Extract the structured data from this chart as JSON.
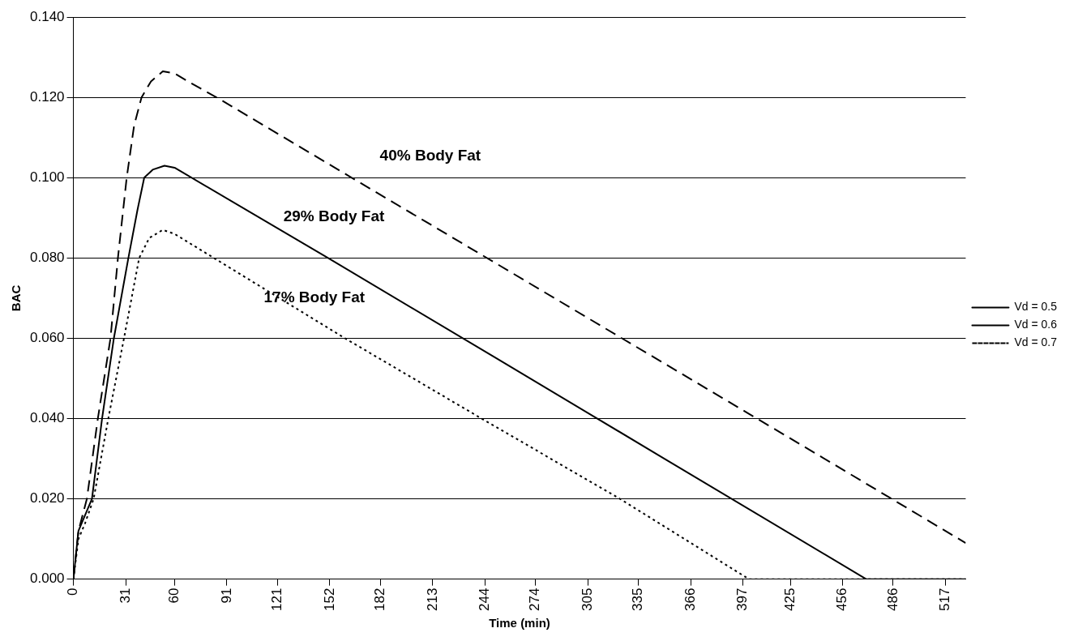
{
  "chart_data": {
    "type": "line",
    "xlabel": "Time (min)",
    "ylabel": "BAC",
    "xlim": [
      0,
      529
    ],
    "xticks": [
      0,
      31,
      60,
      91,
      121,
      152,
      182,
      213,
      244,
      274,
      305,
      335,
      366,
      397,
      425,
      456,
      486,
      517
    ],
    "ylim": [
      0,
      0.14
    ],
    "yticks": [
      {
        "value": 0,
        "label": "0.000"
      },
      {
        "value": 0.02,
        "label": "0.020"
      },
      {
        "value": 0.04,
        "label": "0.040"
      },
      {
        "value": 0.06,
        "label": "0.060"
      },
      {
        "value": 0.08,
        "label": "0.080"
      },
      {
        "value": 0.1,
        "label": "0.100"
      },
      {
        "value": 0.12,
        "label": "0.120"
      },
      {
        "value": 0.14,
        "label": "0.140"
      }
    ],
    "grid": "y",
    "legend": "right",
    "marker": "none",
    "series": [
      {
        "name": "Vd = 0.5",
        "color": "#000000",
        "line_style": "dashed",
        "x": [
          0,
          3,
          8,
          14.5,
          22,
          26.4,
          31.6,
          36,
          40.4,
          46,
          53,
          60,
          70,
          85,
          165,
          250,
          350,
          450,
          529
        ],
        "values": [
          0,
          0.012,
          0.02,
          0.04,
          0.06,
          0.08,
          0.1,
          0.113,
          0.12,
          0.124,
          0.1265,
          0.126,
          0.1235,
          0.12,
          0.1,
          0.0788,
          0.0538,
          0.0288,
          0.009
        ]
      },
      {
        "name": "Vd = 0.6",
        "color": "#000000",
        "line_style": "solid",
        "x": [
          0,
          3,
          7,
          11,
          17,
          24,
          32.6,
          38,
          42,
          47,
          54,
          60,
          151,
          250,
          350,
          470,
          529
        ],
        "values": [
          0,
          0.012,
          0.016,
          0.02,
          0.04,
          0.06,
          0.08,
          0.092,
          0.1,
          0.102,
          0.103,
          0.1025,
          0.08,
          0.0552,
          0.0301,
          0,
          0
        ]
      },
      {
        "name": "Vd = 0.7",
        "color": "#000000",
        "line_style": "dotted",
        "x": [
          0,
          3,
          7,
          12,
          20.7,
          30,
          39,
          45,
          53,
          60,
          161,
          242,
          324,
          400.5,
          529
        ],
        "values": [
          0,
          0.01,
          0.014,
          0.02,
          0.04,
          0.06,
          0.08,
          0.085,
          0.087,
          0.086,
          0.06,
          0.04,
          0.02,
          0,
          0
        ]
      }
    ],
    "annotations": [
      "40% Body Fat",
      "29% Body Fat",
      "17% Body Fat"
    ]
  }
}
